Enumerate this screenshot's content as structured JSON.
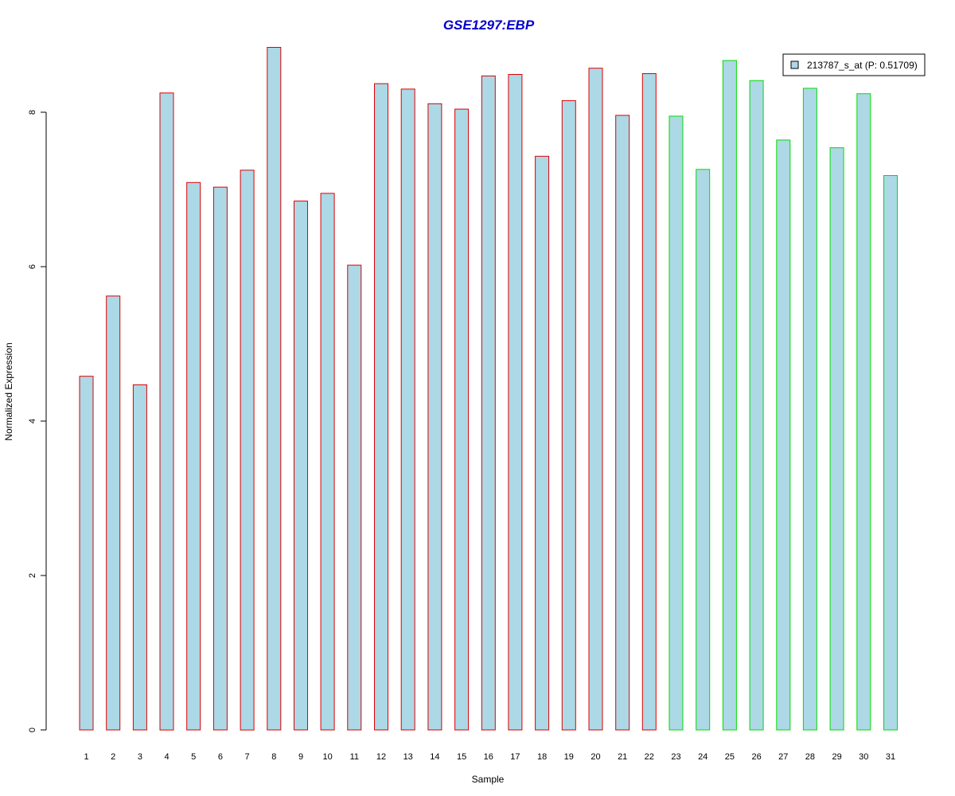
{
  "chart_data": {
    "type": "bar",
    "title": "GSE1297:EBP",
    "xlabel": "Sample",
    "ylabel": "Normalized Expression",
    "categories": [
      "1",
      "2",
      "3",
      "4",
      "5",
      "6",
      "7",
      "8",
      "9",
      "10",
      "11",
      "12",
      "13",
      "14",
      "15",
      "16",
      "17",
      "18",
      "19",
      "20",
      "21",
      "22",
      "23",
      "24",
      "25",
      "26",
      "27",
      "28",
      "29",
      "30",
      "31"
    ],
    "series": [
      {
        "name": "213787_s_at (P: 0.51709)",
        "values": [
          4.58,
          5.62,
          4.47,
          8.25,
          7.09,
          7.03,
          7.25,
          8.84,
          6.85,
          6.95,
          6.02,
          8.37,
          8.3,
          8.11,
          8.04,
          8.47,
          8.49,
          7.43,
          8.15,
          8.57,
          7.96,
          8.5,
          7.95,
          7.26,
          8.67,
          8.41,
          7.64,
          8.31,
          7.54,
          8.24,
          7.18
        ]
      }
    ],
    "group_border_colors": [
      "#dd0000",
      "#dd0000",
      "#dd0000",
      "#dd0000",
      "#dd0000",
      "#dd0000",
      "#dd0000",
      "#dd0000",
      "#dd0000",
      "#dd0000",
      "#dd0000",
      "#dd0000",
      "#dd0000",
      "#dd0000",
      "#dd0000",
      "#dd0000",
      "#dd0000",
      "#dd0000",
      "#dd0000",
      "#dd0000",
      "#dd0000",
      "#dd0000",
      "#00dd00",
      "#00dd00",
      "#00dd00",
      "#00dd00",
      "#00dd00",
      "#00dd00",
      "#00dd00",
      "#00dd00",
      "#00dd00"
    ],
    "bar_fill_color": "#add8e6",
    "title_color": "#0000cc",
    "yticks": [
      0,
      2,
      4,
      6,
      8
    ],
    "ylim": [
      0,
      8.84
    ],
    "grid": false,
    "legend_position": "top-right"
  }
}
